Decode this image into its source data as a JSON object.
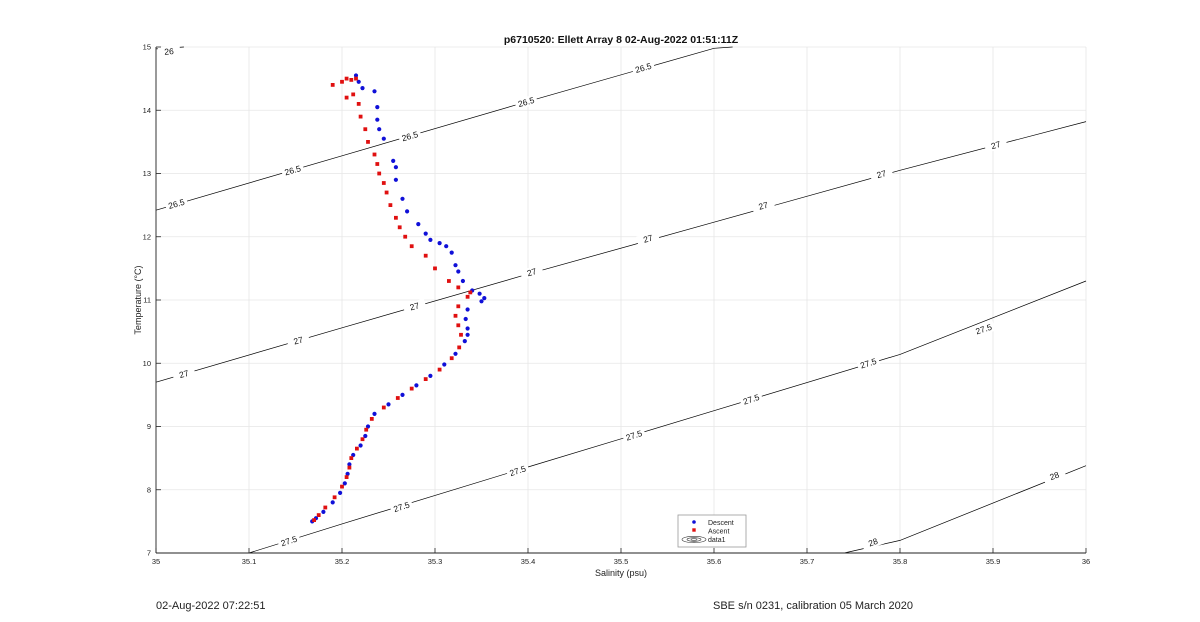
{
  "chart_data": {
    "type": "scatter",
    "title": "p6710520: Ellett Array 8 02-Aug-2022 01:51:11Z",
    "xlabel": "Salinity (psu)",
    "ylabel": "Temperature (°C)",
    "xlim": [
      35,
      36
    ],
    "ylim": [
      7,
      15
    ],
    "xticks": [
      "35",
      "35.1",
      "35.2",
      "35.3",
      "35.4",
      "35.5",
      "35.6",
      "35.7",
      "35.8",
      "35.9",
      "36"
    ],
    "yticks": [
      "7",
      "8",
      "9",
      "10",
      "11",
      "12",
      "13",
      "14",
      "15"
    ],
    "grid": true,
    "legend_position": "bottom-center",
    "legend": [
      "Descent",
      "Ascent",
      "data1"
    ],
    "colors": {
      "descent": "#1010d8",
      "ascent": "#e01010",
      "contour": "#000000",
      "grid": "#e6e6e6"
    },
    "series": [
      {
        "name": "Descent",
        "points": [
          [
            35.168,
            7.5
          ],
          [
            35.172,
            7.55
          ],
          [
            35.18,
            7.65
          ],
          [
            35.19,
            7.8
          ],
          [
            35.198,
            7.95
          ],
          [
            35.203,
            8.1
          ],
          [
            35.206,
            8.25
          ],
          [
            35.208,
            8.4
          ],
          [
            35.212,
            8.55
          ],
          [
            35.22,
            8.7
          ],
          [
            35.225,
            8.85
          ],
          [
            35.228,
            9.0
          ],
          [
            35.235,
            9.2
          ],
          [
            35.25,
            9.35
          ],
          [
            35.265,
            9.5
          ],
          [
            35.28,
            9.65
          ],
          [
            35.295,
            9.8
          ],
          [
            35.31,
            9.98
          ],
          [
            35.322,
            10.15
          ],
          [
            35.332,
            10.35
          ],
          [
            35.335,
            10.45
          ],
          [
            35.335,
            10.55
          ],
          [
            35.333,
            10.7
          ],
          [
            35.335,
            10.85
          ],
          [
            35.35,
            10.98
          ],
          [
            35.353,
            11.03
          ],
          [
            35.348,
            11.1
          ],
          [
            35.34,
            11.15
          ],
          [
            35.33,
            11.3
          ],
          [
            35.325,
            11.45
          ],
          [
            35.322,
            11.55
          ],
          [
            35.318,
            11.75
          ],
          [
            35.312,
            11.85
          ],
          [
            35.305,
            11.9
          ],
          [
            35.295,
            11.95
          ],
          [
            35.29,
            12.05
          ],
          [
            35.282,
            12.2
          ],
          [
            35.27,
            12.4
          ],
          [
            35.265,
            12.6
          ],
          [
            35.258,
            12.9
          ],
          [
            35.258,
            13.1
          ],
          [
            35.255,
            13.2
          ],
          [
            35.245,
            13.55
          ],
          [
            35.24,
            13.7
          ],
          [
            35.238,
            13.85
          ],
          [
            35.238,
            14.05
          ],
          [
            35.235,
            14.3
          ],
          [
            35.222,
            14.35
          ],
          [
            35.218,
            14.45
          ],
          [
            35.215,
            14.55
          ]
        ]
      },
      {
        "name": "Ascent",
        "points": [
          [
            35.17,
            7.52
          ],
          [
            35.175,
            7.6
          ],
          [
            35.182,
            7.72
          ],
          [
            35.192,
            7.88
          ],
          [
            35.2,
            8.05
          ],
          [
            35.205,
            8.2
          ],
          [
            35.208,
            8.35
          ],
          [
            35.21,
            8.5
          ],
          [
            35.216,
            8.65
          ],
          [
            35.222,
            8.8
          ],
          [
            35.226,
            8.95
          ],
          [
            35.232,
            9.12
          ],
          [
            35.245,
            9.3
          ],
          [
            35.26,
            9.45
          ],
          [
            35.275,
            9.6
          ],
          [
            35.29,
            9.75
          ],
          [
            35.305,
            9.9
          ],
          [
            35.318,
            10.08
          ],
          [
            35.326,
            10.25
          ],
          [
            35.328,
            10.45
          ],
          [
            35.325,
            10.6
          ],
          [
            35.322,
            10.75
          ],
          [
            35.325,
            10.9
          ],
          [
            35.335,
            11.05
          ],
          [
            35.338,
            11.12
          ],
          [
            35.325,
            11.2
          ],
          [
            35.315,
            11.3
          ],
          [
            35.3,
            11.5
          ],
          [
            35.29,
            11.7
          ],
          [
            35.275,
            11.85
          ],
          [
            35.268,
            12.0
          ],
          [
            35.262,
            12.15
          ],
          [
            35.258,
            12.3
          ],
          [
            35.252,
            12.5
          ],
          [
            35.248,
            12.7
          ],
          [
            35.245,
            12.85
          ],
          [
            35.24,
            13.0
          ],
          [
            35.238,
            13.15
          ],
          [
            35.235,
            13.3
          ],
          [
            35.228,
            13.5
          ],
          [
            35.225,
            13.7
          ],
          [
            35.22,
            13.9
          ],
          [
            35.218,
            14.1
          ],
          [
            35.212,
            14.25
          ],
          [
            35.205,
            14.2
          ],
          [
            35.19,
            14.4
          ],
          [
            35.2,
            14.45
          ],
          [
            35.205,
            14.5
          ],
          [
            35.21,
            14.48
          ],
          [
            35.215,
            14.5
          ]
        ]
      }
    ],
    "contours": [
      {
        "label": "26",
        "points": [
          [
            35.0,
            14.97
          ],
          [
            35.03,
            15.0
          ]
        ],
        "label_positions": [
          [
            35.014,
            14.93
          ]
        ]
      },
      {
        "label": "26.5",
        "points": [
          [
            35.0,
            12.42
          ],
          [
            35.2,
            13.28
          ],
          [
            35.4,
            14.14
          ],
          [
            35.6,
            14.98
          ],
          [
            35.62,
            15.0
          ]
        ],
        "label_positions": [
          [
            35.022,
            12.52
          ],
          [
            35.147,
            13.05
          ],
          [
            35.273,
            13.59
          ],
          [
            35.398,
            14.13
          ],
          [
            35.524,
            14.67
          ],
          [
            35.65,
            15.21
          ]
        ]
      },
      {
        "label": "27",
        "points": [
          [
            35.0,
            9.7
          ],
          [
            35.2,
            10.56
          ],
          [
            35.4,
            11.41
          ],
          [
            35.6,
            12.23
          ],
          [
            35.8,
            13.05
          ],
          [
            36.0,
            13.82
          ]
        ],
        "label_positions": [
          [
            35.03,
            9.83
          ],
          [
            35.153,
            10.36
          ],
          [
            35.278,
            10.9
          ],
          [
            35.404,
            11.44
          ],
          [
            35.529,
            11.97
          ],
          [
            35.653,
            12.49
          ],
          [
            35.78,
            12.99
          ],
          [
            35.903,
            13.45
          ]
        ]
      },
      {
        "label": "27.5",
        "points": [
          [
            35.1,
            7.0
          ],
          [
            35.2,
            7.46
          ],
          [
            35.4,
            8.36
          ],
          [
            35.6,
            9.25
          ],
          [
            35.8,
            10.14
          ],
          [
            36.0,
            11.3
          ]
        ],
        "label_positions": [
          [
            35.143,
            7.19
          ],
          [
            35.264,
            7.73
          ],
          [
            35.389,
            8.3
          ],
          [
            35.514,
            8.86
          ],
          [
            35.64,
            9.43
          ],
          [
            35.766,
            10.0
          ],
          [
            35.89,
            10.54
          ]
        ]
      },
      {
        "label": "28",
        "points": [
          [
            35.74,
            7.0
          ],
          [
            35.8,
            7.2
          ],
          [
            36.0,
            8.38
          ]
        ],
        "label_positions": [
          [
            35.771,
            7.17
          ],
          [
            35.966,
            8.22
          ]
        ]
      }
    ]
  },
  "footer": {
    "left": "02-Aug-2022 07:22:51",
    "right": "SBE s/n 0231, calibration 05 March 2020"
  }
}
